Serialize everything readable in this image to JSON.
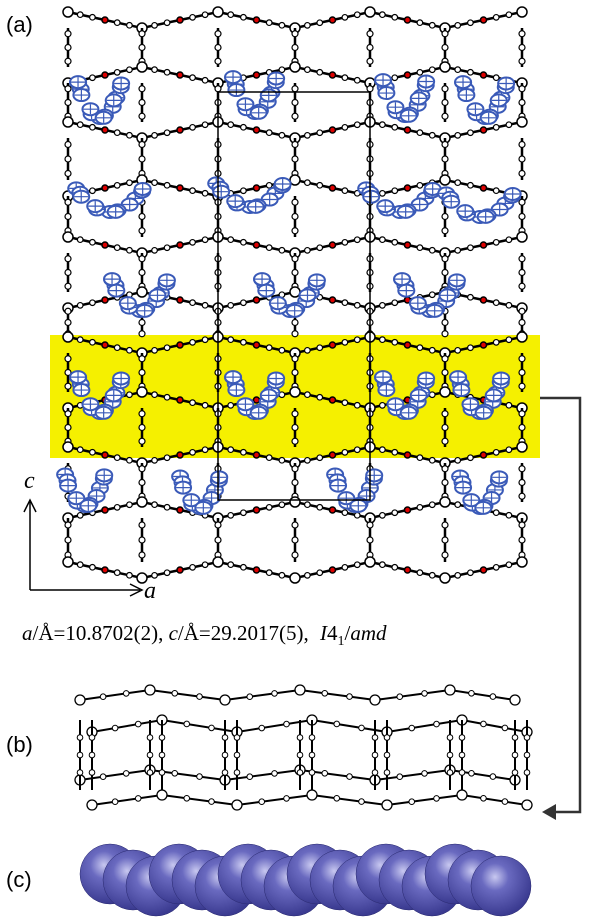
{
  "labels": {
    "a": "(a)",
    "b": "(b)",
    "c": "(c)"
  },
  "axes": {
    "c": "c",
    "a": "a"
  },
  "caption": {
    "a_label": "a",
    "a_unit": "/Å=10.8702(2), ",
    "c_label": "c",
    "c_unit": "/Å=29.2017(5), ",
    "group_main": "I",
    "group_num": "4",
    "group_sub": "1",
    "group_rest": "amd"
  }
}
